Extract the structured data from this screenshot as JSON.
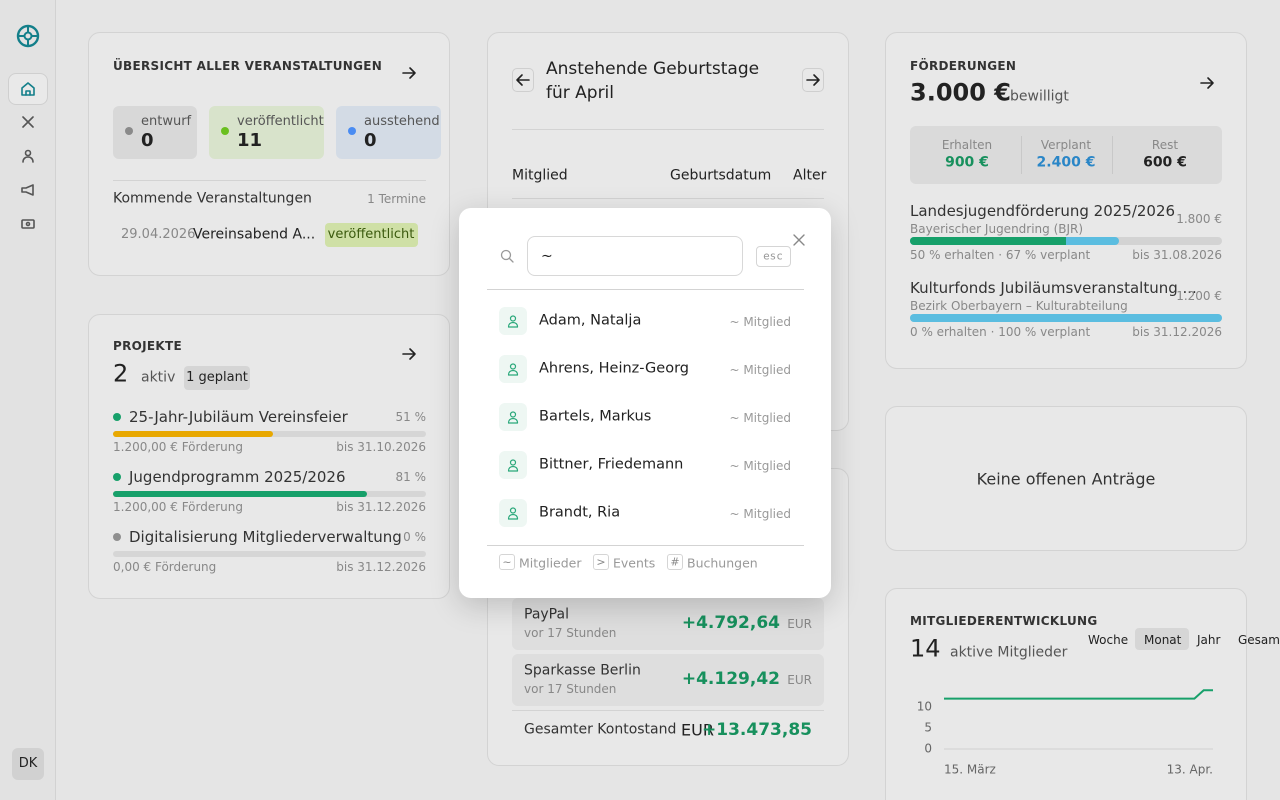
{
  "sidebar": {
    "avatar": "DK"
  },
  "events": {
    "title": "ÜBERSICHT ALLER VERANSTALTUNGEN",
    "stats": [
      {
        "label": "entwurf",
        "count": 0
      },
      {
        "label": "veröffentlicht",
        "count": 11
      },
      {
        "label": "ausstehend",
        "count": 0
      }
    ],
    "upcoming_title": "Kommende Veranstaltungen",
    "upcoming_count": "1 Termine",
    "items": [
      {
        "date": "29.04.2026",
        "name": "Vereinsabend A...",
        "status": "veröffentlicht"
      }
    ]
  },
  "birthdays": {
    "title": "Anstehende Geburtstage für April",
    "columns": [
      "Mitglied",
      "Geburtsdatum",
      "Alter"
    ]
  },
  "funding": {
    "title": "FÖRDERUNGEN",
    "total": "3.000 €",
    "total_note": "bewilligt",
    "summary": [
      {
        "label": "Erhalten",
        "value": "900 €"
      },
      {
        "label": "Verplant",
        "value": "2.400 €"
      },
      {
        "label": "Rest",
        "value": "600 €"
      }
    ],
    "items": [
      {
        "name": "Landesjugendförderung 2025/2026",
        "amount": "1.800 €",
        "source": "Bayerischer Jugendring (BJR)",
        "received_pct": 50,
        "planned_pct": 67,
        "status": "50 % erhalten · 67 % verplant",
        "deadline": "bis 31.08.2026"
      },
      {
        "name": "Kulturfonds Jubiläumsveranstaltung ...",
        "amount": "1.200 €",
        "source": "Bezirk Oberbayern – Kulturabteilung",
        "received_pct": 0,
        "planned_pct": 100,
        "status": "0 % erhalten · 100 % verplant",
        "deadline": "bis 31.12.2026"
      }
    ]
  },
  "projects": {
    "title": "PROJEKTE",
    "count": 2,
    "count_label": "aktiv",
    "badge": "1 geplant",
    "items": [
      {
        "name": "25-Jahr-Jubiläum Vereinsfeier",
        "progress": 51,
        "progress_label": "51 %",
        "funding": "1.200,00 € Förderung",
        "deadline": "bis 31.10.2026",
        "color": "#e8a800",
        "dot": "#17a06a"
      },
      {
        "name": "Jugendprogramm 2025/2026",
        "progress": 81,
        "progress_label": "81 %",
        "funding": "1.200,00 € Förderung",
        "deadline": "bis 31.12.2026",
        "color": "#17a06a",
        "dot": "#17a06a"
      },
      {
        "name": "Digitalisierung Mitgliederverwaltung",
        "progress": 0,
        "progress_label": "0 %",
        "funding": "0,00 € Förderung",
        "deadline": "bis 31.12.2026",
        "color": "#9a9a9a",
        "dot": "#8f8f8f"
      }
    ]
  },
  "accounts": {
    "items": [
      {
        "name": "PayPal",
        "time": "vor 17 Stunden",
        "amount": "+4.792,64",
        "currency": "EUR"
      },
      {
        "name": "Sparkasse Berlin",
        "time": "vor 17 Stunden",
        "amount": "+4.129,42",
        "currency": "EUR"
      }
    ],
    "total_label": "Gesamter Kontostand",
    "total_currency": "EUR",
    "total": "+13.473,85"
  },
  "requests": {
    "text": "Keine offenen Anträge"
  },
  "members": {
    "title": "MITGLIEDERENTWICKLUNG",
    "count": 14,
    "count_label": "aktive Mitglieder",
    "ranges": [
      "Woche",
      "Monat",
      "Jahr",
      "Gesamt"
    ],
    "active": 1,
    "chart": {
      "type": "line",
      "color": "#17a06a",
      "values": [
        12,
        12,
        12,
        12,
        12,
        12,
        12,
        12,
        12,
        12,
        12,
        12,
        12,
        12,
        12,
        12,
        12,
        12,
        12,
        12,
        12,
        12,
        12,
        12,
        12,
        12,
        12,
        12,
        14,
        14
      ],
      "ylim": [
        0,
        16
      ],
      "yticks": [
        0,
        5,
        10
      ],
      "x_labels": [
        "15. März",
        "13. Apr."
      ]
    }
  },
  "search": {
    "query": "~",
    "esc": "esc",
    "results": [
      {
        "name": "Adam, Natalja",
        "tag": "~ Mitglied"
      },
      {
        "name": "Ahrens, Heinz-Georg",
        "tag": "~ Mitglied"
      },
      {
        "name": "Bartels, Markus",
        "tag": "~ Mitglied"
      },
      {
        "name": "Bittner, Friedemann",
        "tag": "~ Mitglied"
      },
      {
        "name": "Brandt, Ria",
        "tag": "~ Mitglied"
      }
    ],
    "hints": [
      {
        "key": "~",
        "label": "Mitglieder"
      },
      {
        "key": ">",
        "label": "Events"
      },
      {
        "key": "#",
        "label": "Buchungen"
      }
    ]
  }
}
